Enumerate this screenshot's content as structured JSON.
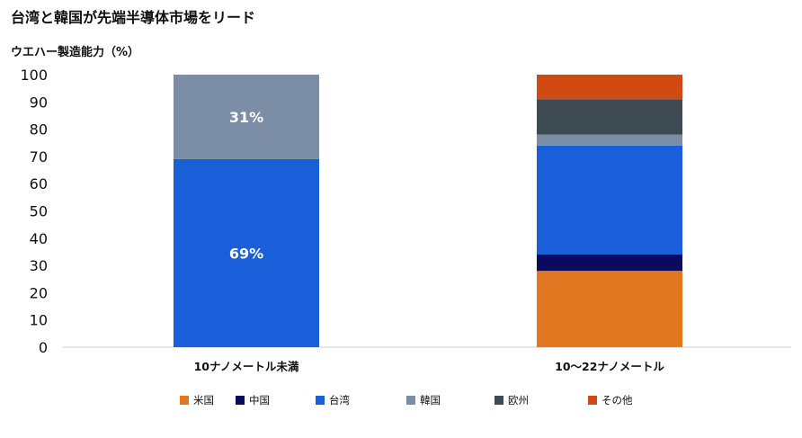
{
  "title": "台湾と韓国が先端半導体市場をリード",
  "subtitle": "ウエハー製造能力（%）",
  "chart_data": {
    "type": "bar",
    "stacked": true,
    "categories": [
      "10ナノメートル未満",
      "10〜22ナノメートル"
    ],
    "ylim": [
      0,
      100
    ],
    "yticks": [
      0,
      10,
      20,
      30,
      40,
      50,
      60,
      70,
      80,
      90,
      100
    ],
    "grid": false,
    "legend_position": "bottom",
    "series": [
      {
        "name": "米国",
        "color": "#E07721",
        "values": [
          0,
          28
        ]
      },
      {
        "name": "中国",
        "color": "#0A0A5E",
        "values": [
          0,
          6
        ]
      },
      {
        "name": "台湾",
        "color": "#1A5FD9",
        "values": [
          69,
          40
        ]
      },
      {
        "name": "韓国",
        "color": "#7B8EA5",
        "values": [
          31,
          4
        ]
      },
      {
        "name": "欧州",
        "color": "#3D4A52",
        "values": [
          0,
          13
        ]
      },
      {
        "name": "その他",
        "color": "#D14A12",
        "values": [
          0,
          9
        ]
      }
    ],
    "data_labels": [
      {
        "category_index": 0,
        "series_index": 2,
        "text": "69%"
      },
      {
        "category_index": 0,
        "series_index": 3,
        "text": "31%"
      }
    ]
  }
}
